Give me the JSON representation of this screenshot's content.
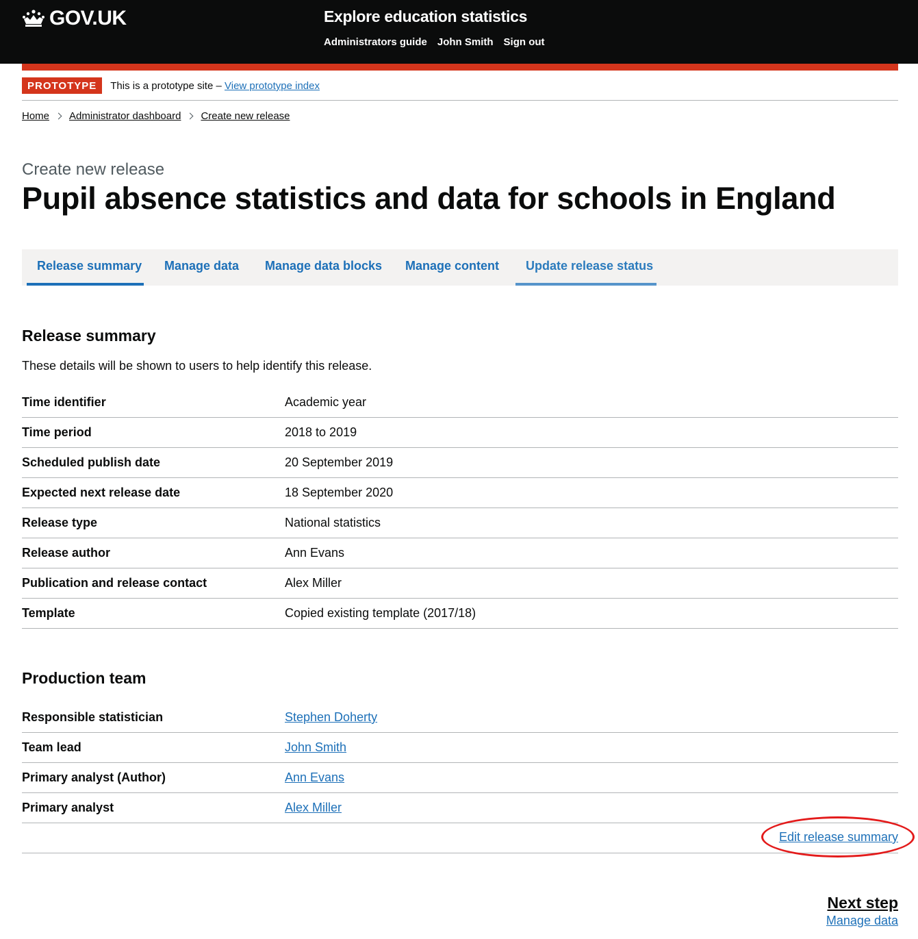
{
  "header": {
    "logo_text": "GOV.UK",
    "service_name": "Explore education statistics",
    "nav": [
      "Administrators guide",
      "John Smith",
      "Sign out"
    ]
  },
  "phase": {
    "tag": "PROTOTYPE",
    "text": "This is a prototype site –",
    "link": "View prototype index"
  },
  "breadcrumbs": [
    "Home",
    "Administrator dashboard",
    "Create new release"
  ],
  "page": {
    "caption": "Create new release",
    "title": "Pupil absence statistics and data for schools in England"
  },
  "tabs": [
    {
      "label": "Release summary",
      "state": "selected"
    },
    {
      "label": "Manage data",
      "state": "default"
    },
    {
      "label": "Manage data blocks",
      "state": "default"
    },
    {
      "label": "Manage content",
      "state": "default"
    },
    {
      "label": "Update release status",
      "state": "highlighted"
    }
  ],
  "release_summary": {
    "heading": "Release summary",
    "lede": "These details will be shown to users to help identify this release.",
    "rows": [
      {
        "key": "Time identifier",
        "value": "Academic year"
      },
      {
        "key": "Time period",
        "value": "2018 to 2019"
      },
      {
        "key": "Scheduled publish date",
        "value": "20 September 2019"
      },
      {
        "key": "Expected next release date",
        "value": "18 September 2020"
      },
      {
        "key": "Release type",
        "value": "National statistics"
      },
      {
        "key": "Release author",
        "value": "Ann Evans"
      },
      {
        "key": "Publication and release contact",
        "value": "Alex Miller"
      },
      {
        "key": "Template",
        "value": "Copied existing template (2017/18)"
      }
    ]
  },
  "production_team": {
    "heading": "Production team",
    "rows": [
      {
        "key": "Responsible statistician",
        "value": "Stephen Doherty"
      },
      {
        "key": "Team lead",
        "value": "John Smith"
      },
      {
        "key": "Primary analyst (Author)",
        "value": "Ann Evans"
      },
      {
        "key": "Primary analyst",
        "value": "Alex Miller"
      }
    ],
    "edit_link": "Edit release summary"
  },
  "next_step": {
    "title": "Next step",
    "link": "Manage data"
  },
  "colors": {
    "header_bg": "#0b0c0c",
    "accent_red": "#d4351c",
    "link_blue": "#1d70b8",
    "tab_selected": "#1d70b8",
    "tab_highlight": "#5694ca",
    "annotation_circle": "#e31b1b"
  }
}
